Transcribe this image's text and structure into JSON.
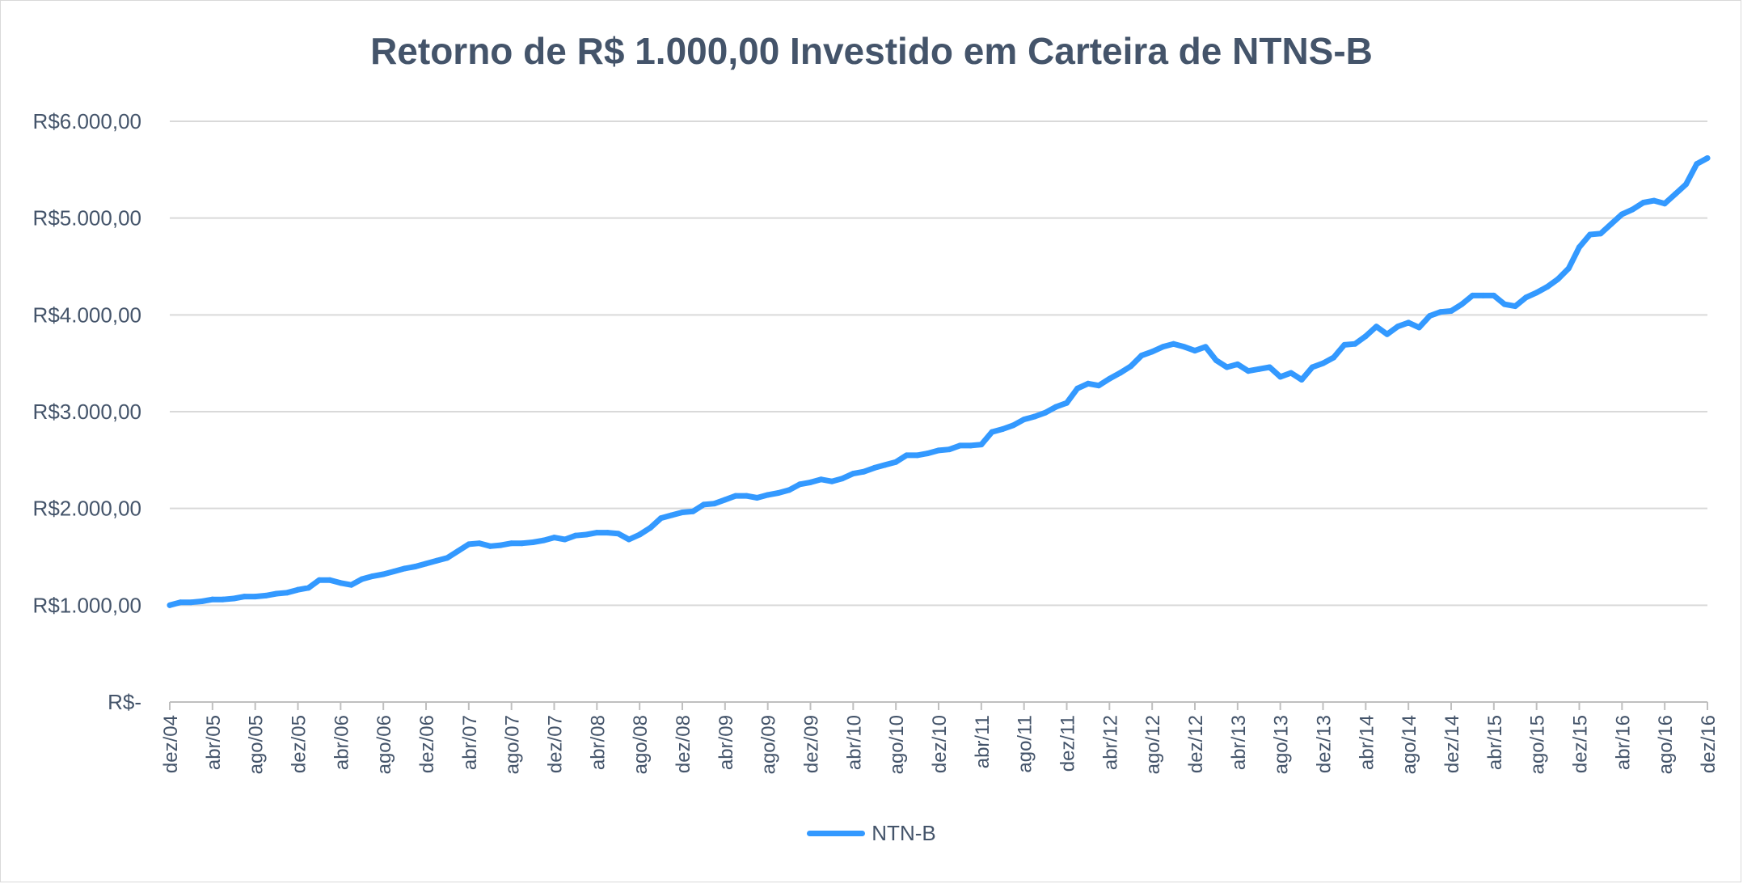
{
  "chart_data": {
    "type": "line",
    "title": "Retorno de R$ 1.000,00 Investido em Carteira de NTNS-B",
    "xlabel": "",
    "ylabel": "",
    "ylim": [
      0,
      6000
    ],
    "yticks": [
      0,
      1000,
      2000,
      3000,
      4000,
      5000,
      6000
    ],
    "ytick_labels": [
      "R$-",
      "R$1.000,00",
      "R$2.000,00",
      "R$3.000,00",
      "R$4.000,00",
      "R$5.000,00",
      "R$6.000,00"
    ],
    "x_labels": [
      "dez/04",
      "abr/05",
      "ago/05",
      "dez/05",
      "abr/06",
      "ago/06",
      "dez/06",
      "abr/07",
      "ago/07",
      "dez/07",
      "abr/08",
      "ago/08",
      "dez/08",
      "abr/09",
      "ago/09",
      "dez/09",
      "abr/10",
      "ago/10",
      "dez/10",
      "abr/11",
      "ago/11",
      "dez/11",
      "abr/12",
      "ago/12",
      "dez/12",
      "abr/13",
      "ago/13",
      "dez/13",
      "abr/14",
      "ago/14",
      "dez/14",
      "abr/15",
      "ago/15",
      "dez/15",
      "abr/16",
      "ago/16",
      "dez/16"
    ],
    "grid": true,
    "legend_position": "bottom",
    "series": [
      {
        "name": "NTN-B",
        "color": "#3399ff",
        "values": [
          1000,
          1030,
          1030,
          1040,
          1060,
          1060,
          1070,
          1090,
          1090,
          1100,
          1120,
          1130,
          1160,
          1180,
          1260,
          1260,
          1230,
          1210,
          1270,
          1300,
          1320,
          1350,
          1380,
          1400,
          1430,
          1460,
          1490,
          1560,
          1630,
          1640,
          1610,
          1620,
          1640,
          1640,
          1650,
          1670,
          1700,
          1680,
          1720,
          1730,
          1750,
          1750,
          1740,
          1680,
          1730,
          1800,
          1900,
          1930,
          1960,
          1970,
          2040,
          2050,
          2090,
          2130,
          2130,
          2110,
          2140,
          2160,
          2190,
          2250,
          2270,
          2300,
          2280,
          2310,
          2360,
          2380,
          2420,
          2450,
          2480,
          2550,
          2550,
          2570,
          2600,
          2610,
          2650,
          2650,
          2660,
          2790,
          2820,
          2860,
          2920,
          2950,
          2990,
          3050,
          3090,
          3240,
          3290,
          3270,
          3340,
          3400,
          3470,
          3580,
          3620,
          3670,
          3700,
          3670,
          3630,
          3670,
          3530,
          3460,
          3490,
          3420,
          3440,
          3460,
          3360,
          3400,
          3330,
          3460,
          3500,
          3560,
          3690,
          3700,
          3780,
          3880,
          3800,
          3880,
          3920,
          3870,
          3990,
          4030,
          4040,
          4110,
          4200,
          4200,
          4200,
          4110,
          4090,
          4180,
          4230,
          4290,
          4370,
          4480,
          4700,
          4830,
          4840,
          4940,
          5040,
          5090,
          5160,
          5180,
          5150,
          5250,
          5350,
          5560,
          5620
        ]
      }
    ]
  }
}
